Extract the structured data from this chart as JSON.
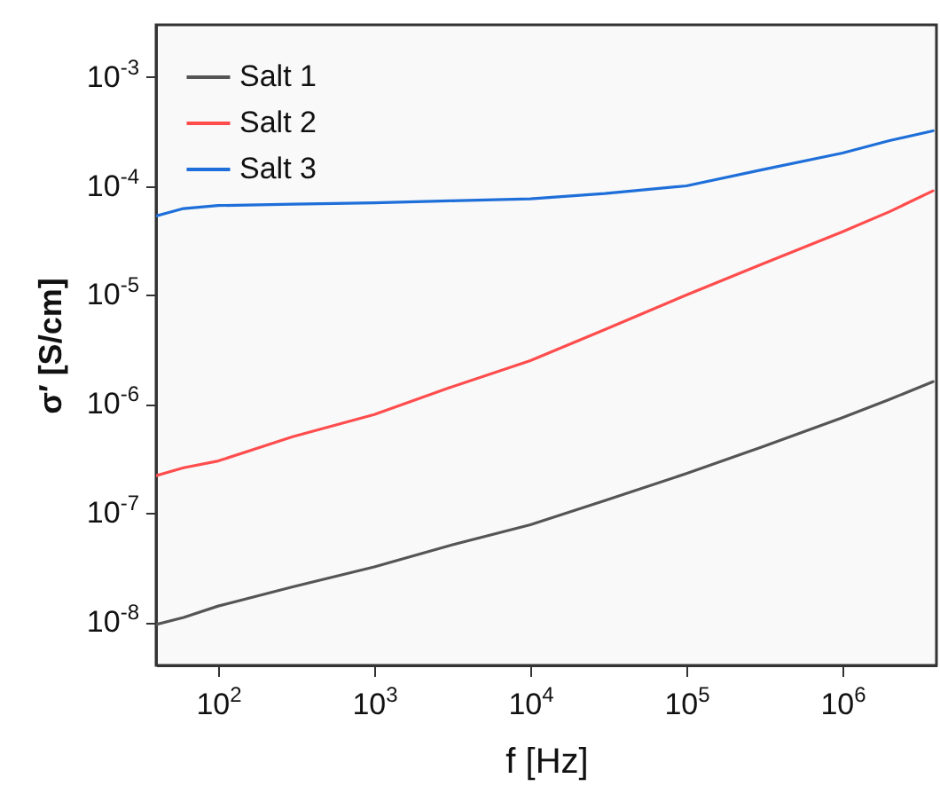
{
  "chart_data": {
    "type": "line",
    "xlabel": "f [Hz]",
    "ylabel": "σ′ [S/cm]",
    "log": "xy",
    "legend": "top left",
    "grid": false,
    "x": [
      40,
      60,
      100,
      300,
      1000,
      3000,
      10000,
      30000,
      100000,
      300000,
      1000000,
      2000000,
      3800000
    ],
    "xlim": [
      40,
      4000000
    ],
    "ylim": [
      4e-09,
      0.003
    ],
    "xticks": [
      {
        "value": 100,
        "label": "10$^{2}$"
      },
      {
        "value": 1000,
        "label": "10$^{3}$"
      },
      {
        "value": 10000,
        "label": "10$^{4}$"
      },
      {
        "value": 100000,
        "label": "10$^{5}$"
      },
      {
        "value": 1000000,
        "label": "10$^{6}$"
      }
    ],
    "yticks": [
      {
        "value": 1e-08,
        "label": "10$^{-8}$"
      },
      {
        "value": 1e-07,
        "label": "10$^{-7}$"
      },
      {
        "value": 1e-06,
        "label": "10$^{-6}$"
      },
      {
        "value": 1e-05,
        "label": "10$^{-5}$"
      },
      {
        "value": 0.0001,
        "label": "10$^{-4}$"
      },
      {
        "value": 0.001,
        "label": "10$^{-3}$"
      }
    ],
    "series": [
      {
        "name": "Salt 1",
        "color": "#555555",
        "values": [
          9.5e-09,
          1.1e-08,
          1.4e-08,
          2.1e-08,
          3.2e-08,
          5e-08,
          7.8e-08,
          1.3e-07,
          2.3e-07,
          4e-07,
          7.5e-07,
          1.1e-06,
          1.6e-06
        ]
      },
      {
        "name": "Salt 2",
        "color": "#ff4d4d",
        "values": [
          2.2e-07,
          2.6e-07,
          3e-07,
          5e-07,
          8e-07,
          1.4e-06,
          2.5e-06,
          4.8e-06,
          1e-05,
          1.9e-05,
          3.8e-05,
          5.8e-05,
          9e-05
        ]
      },
      {
        "name": "Salt 3",
        "color": "#1e6fd9",
        "values": [
          5.3e-05,
          6.2e-05,
          6.6e-05,
          6.8e-05,
          7e-05,
          7.3e-05,
          7.6e-05,
          8.5e-05,
          0.0001,
          0.00014,
          0.0002,
          0.00026,
          0.00032
        ]
      }
    ]
  }
}
